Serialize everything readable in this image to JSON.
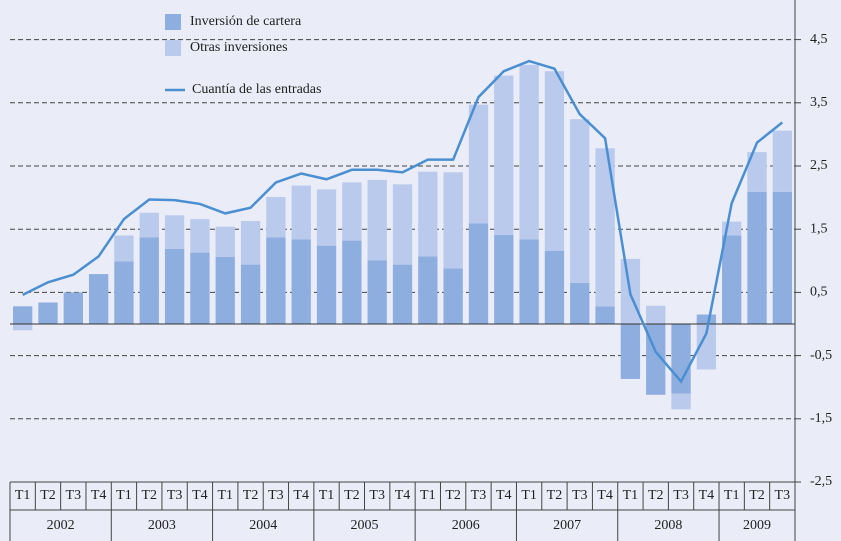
{
  "chart_data": {
    "type": "bar",
    "categories": [
      "T1",
      "T2",
      "T3",
      "T4",
      "T1",
      "T2",
      "T3",
      "T4",
      "T1",
      "T2",
      "T3",
      "T4",
      "T1",
      "T2",
      "T3",
      "T4",
      "T1",
      "T2",
      "T3",
      "T4",
      "T1",
      "T2",
      "T3",
      "T4",
      "T1",
      "T2",
      "T3",
      "T4",
      "T1",
      "T2",
      "T3"
    ],
    "category_groups": [
      "2002",
      "2003",
      "2004",
      "2005",
      "2006",
      "2007",
      "2008",
      "2009"
    ],
    "series": [
      {
        "name": "Inversión de cartera",
        "type": "bar",
        "color": "#8eaee0",
        "values": [
          0.28,
          0.34,
          0.5,
          0.79,
          0.99,
          1.37,
          1.19,
          1.13,
          1.06,
          0.94,
          1.37,
          1.34,
          1.24,
          1.32,
          1.01,
          0.94,
          1.07,
          0.88,
          1.59,
          1.41,
          1.34,
          1.16,
          0.65,
          0.28,
          -0.87,
          -1.12,
          -1.1,
          0.15,
          1.4,
          2.09,
          2.09
        ]
      },
      {
        "name": "Otras inversiones",
        "type": "bar",
        "color": "#b9caec",
        "values": [
          -0.1,
          0,
          0,
          0,
          0.41,
          0.39,
          0.53,
          0.53,
          0.48,
          0.69,
          0.64,
          0.85,
          0.89,
          0.92,
          1.27,
          1.27,
          1.34,
          1.52,
          1.88,
          2.52,
          2.76,
          2.84,
          2.59,
          2.5,
          1.03,
          0.29,
          -0.25,
          -0.72,
          0.22,
          0.63,
          0.97
        ]
      },
      {
        "name": "Cuantía de las entradas",
        "type": "line",
        "color": "#4a8fd2",
        "values": [
          0.46,
          0.66,
          0.78,
          1.07,
          1.66,
          1.97,
          1.96,
          1.9,
          1.75,
          1.84,
          2.24,
          2.38,
          2.29,
          2.44,
          2.44,
          2.4,
          2.6,
          2.6,
          3.59,
          4.0,
          4.16,
          4.04,
          3.32,
          2.94,
          0.47,
          -0.44,
          -0.91,
          -0.15,
          1.91,
          2.87,
          3.19
        ]
      }
    ],
    "ylim": [
      -2.5,
      5.0
    ],
    "yticks": [
      {
        "value": 4.5,
        "label": "4,5"
      },
      {
        "value": 3.5,
        "label": "3,5"
      },
      {
        "value": 2.5,
        "label": "2,5"
      },
      {
        "value": 1.5,
        "label": "1,5"
      },
      {
        "value": 0.5,
        "label": "0,5"
      },
      {
        "value": -0.5,
        "label": "-0,5"
      },
      {
        "value": -1.5,
        "label": "-1,5"
      },
      {
        "value": -2.5,
        "label": "-2,5"
      }
    ],
    "grid": true,
    "legend": "top-left"
  }
}
